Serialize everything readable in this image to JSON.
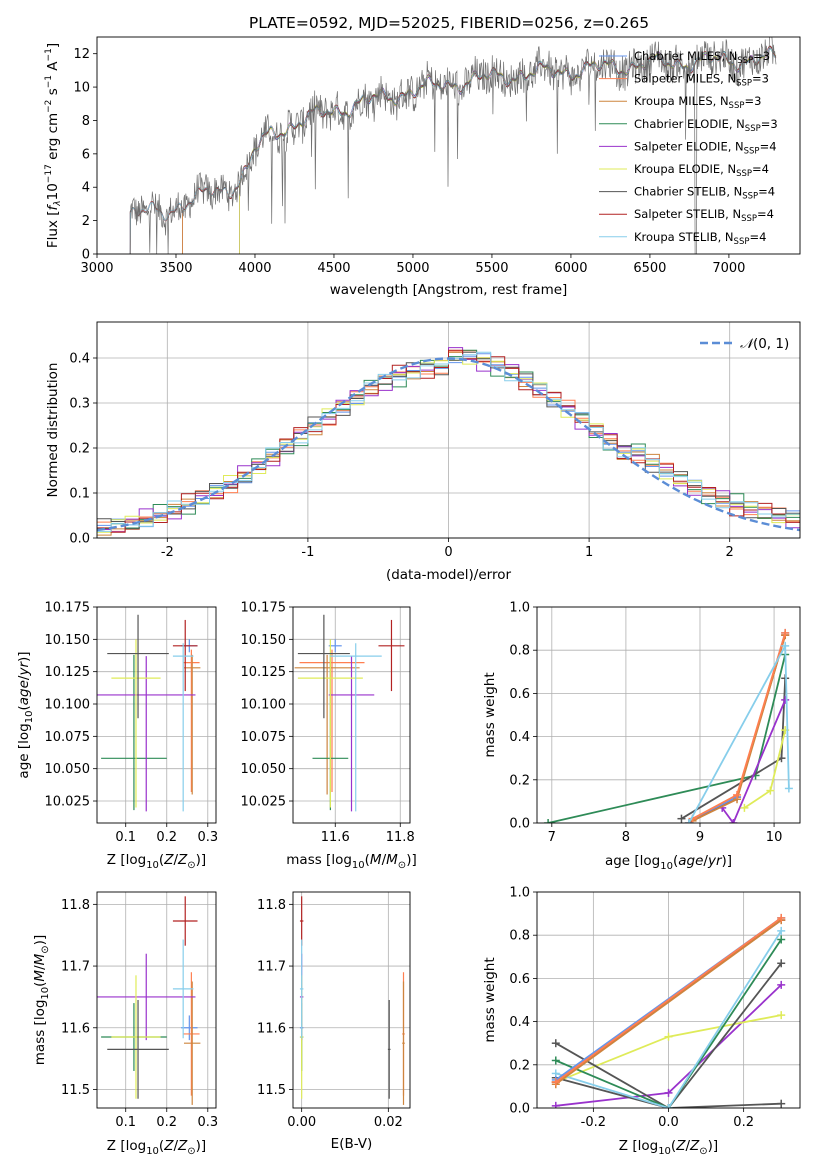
{
  "figure": {
    "title": "PLATE=0592, MJD=52025, FIBERID=0256, z=0.265"
  },
  "colors": {
    "Chabrier MILES": "#6495ED",
    "Salpeter MILES": "#FF7F50",
    "Kroupa MILES": "#CD853F",
    "Chabrier ELODIE": "#2E8B57",
    "Salpeter ELODIE": "#9932CC",
    "Kroupa ELODIE": "#DFEB59",
    "Chabrier STELIB": "#555555",
    "Salpeter STELIB": "#B22222",
    "Kroupa STELIB": "#87CEEB",
    "gaussian": "#5B8DD6",
    "data": "#707070",
    "grid": "#B0B0B0"
  },
  "chart_data": [
    {
      "id": "spectrum",
      "type": "line",
      "title": "PLATE=0592, MJD=52025, FIBERID=0256, z=0.265",
      "xlabel": "wavelength [Angstrom, rest frame]",
      "ylabel": "Flux [fλ10⁻¹⁷ erg cm⁻² s⁻¹ A⁻¹]",
      "xlim": [
        3000,
        7450
      ],
      "ylim": [
        0,
        13
      ],
      "xticks": [
        3000,
        3500,
        4000,
        4500,
        5000,
        5500,
        6000,
        6500,
        7000
      ],
      "yticks": [
        0,
        2,
        4,
        6,
        8,
        10,
        12
      ],
      "grid": false,
      "legend_position": "right",
      "legend": [
        "Chabrier MILES, N_SSP=3",
        "Salpeter MILES, N_SSP=3",
        "Kroupa MILES, N_SSP=3",
        "Chabrier ELODIE, N_SSP=3",
        "Salpeter ELODIE, N_SSP=4",
        "Kroupa ELODIE, N_SSP=4",
        "Chabrier STELIB, N_SSP=4",
        "Salpeter STELIB, N_SSP=4",
        "Kroupa STELIB, N_SSP=4"
      ],
      "legend_series": [
        "Chabrier MILES",
        "Salpeter MILES",
        "Kroupa MILES",
        "Chabrier ELODIE",
        "Salpeter ELODIE",
        "Kroupa ELODIE",
        "Chabrier STELIB",
        "Salpeter STELIB",
        "Kroupa STELIB"
      ],
      "legend_labels": [
        {
          "name": "Chabrier MILES, N",
          "sub": "SSP",
          "rest": "=3"
        },
        {
          "name": "Salpeter MILES, N",
          "sub": "SSP",
          "rest": "=3"
        },
        {
          "name": "Kroupa MILES, N",
          "sub": "SSP",
          "rest": "=3"
        },
        {
          "name": "Chabrier ELODIE, N",
          "sub": "SSP",
          "rest": "=3"
        },
        {
          "name": "Salpeter ELODIE, N",
          "sub": "SSP",
          "rest": "=4"
        },
        {
          "name": "Kroupa ELODIE, N",
          "sub": "SSP",
          "rest": "=4"
        },
        {
          "name": "Chabrier STELIB, N",
          "sub": "SSP",
          "rest": "=4"
        },
        {
          "name": "Salpeter STELIB, N",
          "sub": "SSP",
          "rest": "=4"
        },
        {
          "name": "Kroupa STELIB, N",
          "sub": "SSP",
          "rest": "=4"
        }
      ],
      "data_range": [
        3210,
        7300
      ],
      "continuum": {
        "x": [
          3210,
          3400,
          3550,
          3700,
          3850,
          3950,
          4000,
          4100,
          4300,
          4500,
          4700,
          5000,
          5300,
          5600,
          6000,
          6500,
          7000,
          7300
        ],
        "y": [
          2.4,
          2.5,
          3.0,
          3.6,
          4.0,
          5.0,
          6.2,
          7.2,
          8.0,
          8.6,
          9.1,
          9.8,
          10.3,
          10.7,
          11.0,
          11.4,
          11.6,
          11.7
        ]
      },
      "model_starts": {
        "Chabrier MILES": 3540,
        "Salpeter MILES": 3540,
        "Kroupa MILES": 3540,
        "Kroupa ELODIE": 3900,
        "Chabrier STELIB": 3210,
        "Salpeter STELIB": 3210,
        "Kroupa STELIB": 3210,
        "Chabrier ELODIE": 3900,
        "Salpeter ELODIE": 3900
      }
    },
    {
      "id": "residuals",
      "type": "step",
      "xlabel": "(data-model)/error",
      "ylabel": "Normed distribution",
      "xlim": [
        -2.5,
        2.5
      ],
      "ylim": [
        0,
        0.48
      ],
      "xticks": [
        -2,
        -1,
        0,
        1,
        2
      ],
      "yticks": [
        0.0,
        0.1,
        0.2,
        0.3,
        0.4
      ],
      "grid": true,
      "legend_position": "top-right",
      "legend": [
        "N(0,1)"
      ],
      "bin_edges_step": 0.1,
      "bin_start": -2.5,
      "series": [
        {
          "name": "Chabrier MILES",
          "perturb": 0.011
        },
        {
          "name": "Salpeter MILES",
          "perturb": 0.013
        },
        {
          "name": "Kroupa MILES",
          "perturb": 0.012
        },
        {
          "name": "Chabrier ELODIE",
          "perturb": 0.016
        },
        {
          "name": "Salpeter ELODIE",
          "perturb": 0.015
        },
        {
          "name": "Kroupa ELODIE",
          "perturb": 0.012
        },
        {
          "name": "Chabrier STELIB",
          "perturb": 0.014
        },
        {
          "name": "Salpeter STELIB",
          "perturb": 0.016
        },
        {
          "name": "Kroupa STELIB",
          "perturb": 0.013
        }
      ],
      "gaussian": {
        "mean": 0,
        "sigma": 1
      }
    },
    {
      "id": "age-vs-Z",
      "type": "errorbar",
      "xlabel": "Z [log10(Z/Z⊙)]",
      "ylabel": "age  [log10(age/yr)]",
      "xlim": [
        0.03,
        0.32
      ],
      "ylim": [
        10.008,
        10.175
      ],
      "xticks": [
        0.1,
        0.2,
        0.3
      ],
      "yticks": [
        10.025,
        10.05,
        10.075,
        10.1,
        10.125,
        10.15,
        10.175
      ],
      "grid": true
    },
    {
      "id": "age-vs-mass",
      "type": "errorbar",
      "xlabel": "mass [log10(M/M⊙)]",
      "ylabel": "",
      "xlim": [
        11.47,
        11.83
      ],
      "ylim": [
        10.008,
        10.175
      ],
      "xticks": [
        11.6,
        11.8
      ],
      "yticks": [
        10.025,
        10.05,
        10.075,
        10.1,
        10.125,
        10.15,
        10.175
      ],
      "grid": true
    },
    {
      "id": "massweight-vs-age",
      "type": "line",
      "xlabel": "age  [log10(age/yr)]",
      "ylabel": "mass weight",
      "xlim": [
        6.8,
        10.35
      ],
      "ylim": [
        0,
        1
      ],
      "xticks": [
        7,
        8,
        9,
        10
      ],
      "yticks": [
        0.0,
        0.2,
        0.4,
        0.6,
        0.8,
        1.0
      ],
      "grid": true,
      "series": [
        {
          "name": "Chabrier ELODIE",
          "x": [
            6.95,
            9.75,
            10.15
          ],
          "y": [
            0.0,
            0.22,
            0.78
          ]
        },
        {
          "name": "Chabrier STELIB",
          "x": [
            8.75,
            10.1,
            10.15
          ],
          "y": [
            0.02,
            0.3,
            0.67
          ]
        },
        {
          "name": "Salpeter ELODIE",
          "x": [
            9.3,
            9.45,
            10.15
          ],
          "y": [
            0.07,
            0.0,
            0.57
          ]
        },
        {
          "name": "Kroupa ELODIE",
          "x": [
            9.6,
            9.95,
            10.15
          ],
          "y": [
            0.07,
            0.15,
            0.43
          ]
        },
        {
          "name": "Salpeter STELIB",
          "x": [
            8.85,
            9.5,
            10.15
          ],
          "y": [
            0.0,
            0.12,
            0.87
          ]
        },
        {
          "name": "Chabrier MILES",
          "x": [
            8.9,
            9.5,
            10.15
          ],
          "y": [
            0.02,
            0.12,
            0.88
          ]
        },
        {
          "name": "Kroupa MILES",
          "x": [
            8.9,
            9.5,
            10.15
          ],
          "y": [
            0.01,
            0.11,
            0.87
          ]
        },
        {
          "name": "Salpeter MILES",
          "x": [
            8.9,
            9.5,
            10.15
          ],
          "y": [
            0.02,
            0.13,
            0.88
          ]
        },
        {
          "name": "Kroupa STELIB",
          "x": [
            8.85,
            10.15,
            10.2
          ],
          "y": [
            0.0,
            0.82,
            0.16
          ]
        }
      ]
    },
    {
      "id": "mass-vs-Z",
      "type": "errorbar",
      "xlabel": "Z [log10(Z/Z⊙)]",
      "ylabel": "mass [log10(M/M⊙)]",
      "xlim": [
        0.03,
        0.32
      ],
      "ylim": [
        11.47,
        11.82
      ],
      "xticks": [
        0.1,
        0.2,
        0.3
      ],
      "yticks": [
        11.5,
        11.6,
        11.7,
        11.8
      ],
      "grid": true
    },
    {
      "id": "mass-vs-ebv",
      "type": "errorbar",
      "xlabel": "E(B-V)",
      "ylabel": "",
      "xlim": [
        -0.002,
        0.025
      ],
      "ylim": [
        11.47,
        11.82
      ],
      "xticks": [
        0.0,
        0.02
      ],
      "yticks": [
        11.5,
        11.6,
        11.7,
        11.8
      ],
      "grid": true
    },
    {
      "id": "massweight-vs-Z",
      "type": "line",
      "xlabel": "Z [log10(Z/Z⊙)]",
      "ylabel": "mass weight",
      "xlim": [
        -0.35,
        0.35
      ],
      "ylim": [
        0,
        1
      ],
      "xticks": [
        -0.2,
        0.0,
        0.2
      ],
      "yticks": [
        0.0,
        0.2,
        0.4,
        0.6,
        0.8,
        1.0
      ],
      "grid": true,
      "series": [
        {
          "name": "Salpeter ELODIE",
          "x": [
            -0.3,
            0.0,
            0.3
          ],
          "y": [
            0.01,
            0.07,
            0.57
          ]
        },
        {
          "name": "Kroupa ELODIE",
          "x": [
            -0.3,
            0.0,
            0.3
          ],
          "y": [
            0.12,
            0.33,
            0.43
          ]
        },
        {
          "name": "Chabrier STELIB",
          "x": [
            -0.3,
            0.0,
            0.3
          ],
          "y": [
            0.3,
            0.0,
            0.02
          ]
        },
        {
          "name": "Chabrier STELIB",
          "x": [
            -0.3,
            0.0,
            0.3
          ],
          "y": [
            0.14,
            0.0,
            0.67
          ]
        },
        {
          "name": "Chabrier ELODIE",
          "x": [
            -0.3,
            0.0,
            0.3
          ],
          "y": [
            0.22,
            0.0,
            0.78
          ]
        },
        {
          "name": "Kroupa STELIB",
          "x": [
            -0.3,
            0.0,
            0.3
          ],
          "y": [
            0.16,
            0.0,
            0.82
          ]
        },
        {
          "name": "Salpeter STELIB",
          "x": [
            -0.3,
            0.3
          ],
          "y": [
            0.12,
            0.87
          ]
        },
        {
          "name": "Chabrier MILES",
          "x": [
            -0.3,
            0.3
          ],
          "y": [
            0.13,
            0.88
          ]
        },
        {
          "name": "Kroupa MILES",
          "x": [
            -0.3,
            0.3
          ],
          "y": [
            0.11,
            0.87
          ]
        },
        {
          "name": "Salpeter MILES",
          "x": [
            -0.3,
            0.3
          ],
          "y": [
            0.12,
            0.88
          ]
        }
      ]
    }
  ],
  "fits": [
    {
      "name": "Chabrier MILES",
      "Z": 0.255,
      "Zerr": 0.02,
      "age": 10.145,
      "age_err": [
        0.005,
        0.005
      ],
      "mass": 11.6,
      "mass_err": 0.02,
      "ebv": 0.0,
      "ebv_err": 0.0004
    },
    {
      "name": "Salpeter MILES",
      "Z": 0.26,
      "Zerr": 0.02,
      "age": 10.132,
      "age_err": [
        0.1,
        0.01
      ],
      "mass": 11.59,
      "mass_err": 0.1,
      "ebv": 0.0235,
      "ebv_err": 0.0003
    },
    {
      "name": "Kroupa MILES",
      "Z": 0.262,
      "Zerr": 0.02,
      "age": 10.128,
      "age_err": [
        0.098,
        0.01
      ],
      "mass": 11.575,
      "mass_err": 0.1,
      "ebv": 0.0235,
      "ebv_err": 0.0003
    },
    {
      "name": "Chabrier ELODIE",
      "Z": 0.12,
      "Zerr": 0.08,
      "age": 10.058,
      "age_err": [
        0.04,
        0.08
      ],
      "mass": 11.585,
      "mass_err": 0.055,
      "ebv": 0.0,
      "ebv_err": 0.0004
    },
    {
      "name": "Salpeter ELODIE",
      "Z": 0.15,
      "Zerr": 0.12,
      "age": 10.107,
      "age_err": [
        0.09,
        0.03
      ],
      "mass": 11.65,
      "mass_err": 0.07,
      "ebv": 0.0,
      "ebv_err": 0.0004
    },
    {
      "name": "Kroupa ELODIE",
      "Z": 0.125,
      "Zerr": 0.06,
      "age": 10.12,
      "age_err": [
        0.1,
        0.03
      ],
      "mass": 11.585,
      "mass_err": 0.1,
      "ebv": 0.0,
      "ebv_err": 0.0004
    },
    {
      "name": "Chabrier STELIB",
      "Z": 0.13,
      "Zerr": 0.075,
      "age": 10.139,
      "age_err": [
        0.05,
        0.03
      ],
      "mass": 11.565,
      "mass_err": 0.08,
      "ebv": 0.0202,
      "ebv_err": 0.0003
    },
    {
      "name": "Salpeter STELIB",
      "Z": 0.245,
      "Zerr": 0.03,
      "age": 10.145,
      "age_err": [
        0.035,
        0.02
      ],
      "mass": 11.773,
      "mass_err": 0.04,
      "ebv": 0.0,
      "ebv_err": 0.0004
    },
    {
      "name": "Kroupa STELIB",
      "Z": 0.24,
      "Zerr": 0.025,
      "age": 10.137,
      "age_err": [
        0.12,
        0.01
      ],
      "mass": 11.663,
      "mass_err": 0.08,
      "ebv": 0.0,
      "ebv_err": 0.0004
    }
  ]
}
